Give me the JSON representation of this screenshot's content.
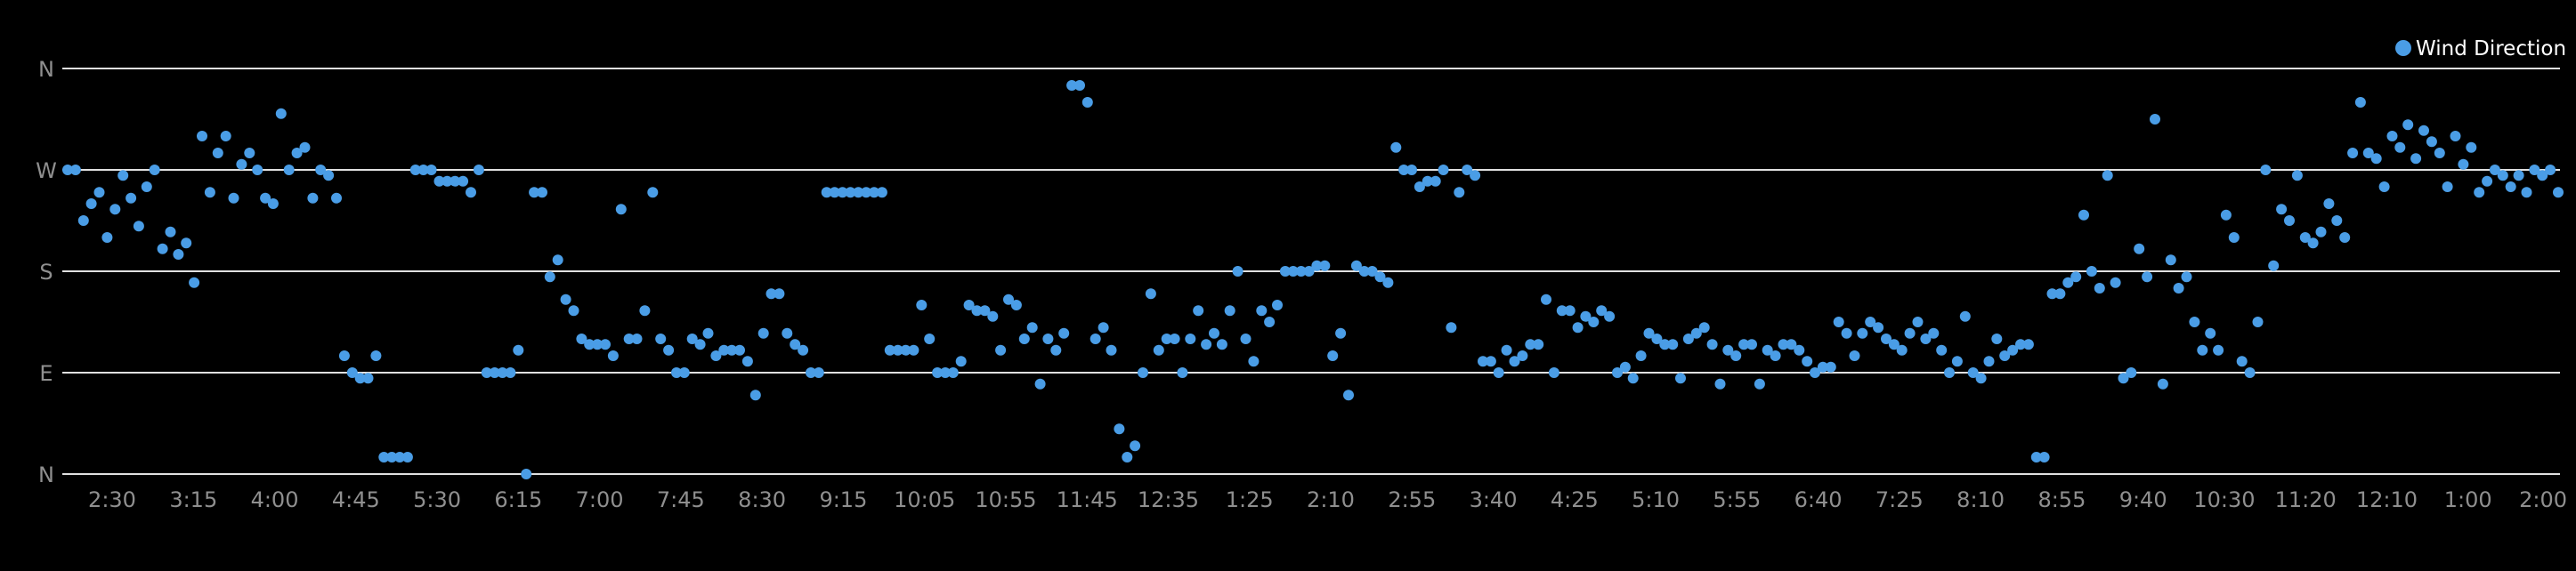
{
  "chart_data": {
    "type": "scatter",
    "title": "",
    "xlabel": "",
    "ylabel": "",
    "grid": true,
    "legend_position": "top-right",
    "colors": {
      "background": "#000000",
      "series": "#4a9de6",
      "grid": "#e0e0e0",
      "tick_text": "#8f8f8f",
      "legend_text": "#ffffff"
    },
    "series": [
      {
        "name": "Wind Direction",
        "y_unit": "degrees (0 = N, 90 = E, 180 = S, 270 = W, 360 = N)",
        "y": [
          270,
          270,
          225,
          240,
          250,
          210,
          235,
          265,
          245,
          220,
          255,
          270,
          200,
          215,
          195,
          205,
          170,
          300,
          250,
          285,
          300,
          245,
          275,
          285,
          270,
          245,
          240,
          320,
          270,
          285,
          290,
          245,
          270,
          265,
          245,
          105,
          90,
          85,
          85,
          105,
          15,
          15,
          15,
          15,
          270,
          270,
          270,
          260,
          260,
          260,
          260,
          250,
          270,
          90,
          90,
          90,
          90,
          110,
          0,
          250,
          250,
          175,
          190,
          155,
          145,
          120,
          115,
          115,
          115,
          105,
          235,
          120,
          120,
          145,
          250,
          120,
          110,
          90,
          90,
          120,
          115,
          125,
          105,
          110,
          110,
          110,
          100,
          70,
          125,
          160,
          160,
          125,
          115,
          110,
          90,
          90,
          250,
          250,
          250,
          250,
          250,
          250,
          250,
          250,
          110,
          110,
          110,
          110,
          150,
          120,
          90,
          90,
          90,
          100,
          150,
          145,
          145,
          140,
          110,
          155,
          150,
          120,
          130,
          80,
          120,
          110,
          125,
          345,
          345,
          330,
          120,
          130,
          110,
          40,
          15,
          25,
          90,
          160,
          110,
          120,
          120,
          90,
          120,
          145,
          115,
          125,
          115,
          145,
          180,
          120,
          100,
          145,
          135,
          150,
          180,
          180,
          180,
          180,
          185,
          185,
          105,
          125,
          70,
          185,
          180,
          180,
          175,
          170,
          290,
          270,
          270,
          255,
          260,
          260,
          270,
          130,
          250,
          270,
          265,
          100,
          100,
          90,
          110,
          100,
          105,
          115,
          115,
          155,
          90,
          145,
          145,
          130,
          140,
          135,
          145,
          140,
          90,
          95,
          85,
          105,
          125,
          120,
          115,
          115,
          85,
          120,
          125,
          130,
          115,
          80,
          110,
          105,
          115,
          115,
          80,
          110,
          105,
          115,
          115,
          110,
          100,
          90,
          95,
          95,
          135,
          125,
          105,
          125,
          135,
          130,
          120,
          115,
          110,
          125,
          135,
          120,
          125,
          110,
          90,
          100,
          140,
          90,
          85,
          100,
          120,
          105,
          110,
          115,
          115,
          15,
          15,
          160,
          160,
          170,
          175,
          230,
          180,
          165,
          265,
          170,
          85,
          90,
          200,
          175,
          315,
          80,
          190,
          165,
          175,
          135,
          110,
          125,
          110,
          230,
          210,
          100,
          90,
          135,
          270,
          185,
          235,
          225,
          265,
          210,
          205,
          215,
          240,
          225,
          210,
          285,
          330,
          285,
          280,
          255,
          300,
          290,
          310,
          280,
          305,
          295,
          285,
          255,
          300,
          275,
          290,
          250,
          260,
          270,
          265,
          255,
          265,
          250,
          270,
          265,
          270,
          250
        ]
      }
    ],
    "y_axis": {
      "range_degrees": [
        0,
        360
      ],
      "ticks": [
        {
          "label": "N",
          "value": 0
        },
        {
          "label": "E",
          "value": 90
        },
        {
          "label": "S",
          "value": 180
        },
        {
          "label": "W",
          "value": 270
        },
        {
          "label": "N",
          "value": 360
        }
      ]
    },
    "x_axis": {
      "range": [
        "2:00",
        "2:00 next day"
      ],
      "tick_labels": [
        "2:30",
        "3:15",
        "4:00",
        "4:45",
        "5:30",
        "6:15",
        "7:00",
        "7:45",
        "8:30",
        "9:15",
        "10:05",
        "10:55",
        "11:45",
        "12:35",
        "1:25",
        "2:10",
        "2:55",
        "3:40",
        "4:25",
        "5:10",
        "5:55",
        "6:40",
        "7:25",
        "8:10",
        "8:55",
        "9:40",
        "10:30",
        "11:20",
        "12:10",
        "1:00",
        "2:00"
      ]
    }
  }
}
